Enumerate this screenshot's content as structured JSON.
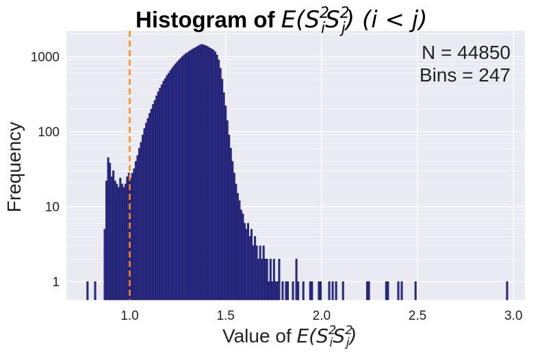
{
  "chart_data": {
    "type": "bar",
    "title": {
      "prefix": "Histogram of ",
      "E": "E",
      "open": "(",
      "S": "S",
      "two": "2",
      "i": "i",
      "j": "j",
      "close": ")",
      "cond": " (i < j)"
    },
    "xlabel": {
      "prefix": "Value of ",
      "E": "E",
      "open": "(",
      "S": "S",
      "two": "2",
      "i": "i",
      "j": "j",
      "close": ")"
    },
    "ylabel": "Frequency",
    "annotations": [
      "N = 44850",
      "Bins = 247"
    ],
    "xlim": [
      0.67,
      3.06
    ],
    "ylim": [
      0.57,
      2200
    ],
    "yscale": "log",
    "xticks": [
      {
        "value": 1.0,
        "label": "1.0"
      },
      {
        "value": 1.5,
        "label": "1.5"
      },
      {
        "value": 2.0,
        "label": "2.0"
      },
      {
        "value": 2.5,
        "label": "2.5"
      },
      {
        "value": 3.0,
        "label": "3.0"
      }
    ],
    "yticks": [
      {
        "value": 1,
        "label": "1"
      },
      {
        "value": 10,
        "label": "10"
      },
      {
        "value": 100,
        "label": "100"
      },
      {
        "value": 1000,
        "label": "1000"
      }
    ],
    "grid": true,
    "reference_line": {
      "x": 1.0,
      "style": "dashed",
      "color": "#ff8c1a"
    },
    "bar_color": "#2e2e8a",
    "bar_edge": "#11114d",
    "background": "#eaeaf2",
    "bin_width": 0.00897,
    "bins": [
      [
        0.78,
        1
      ],
      [
        0.82,
        1
      ],
      [
        0.87,
        5
      ],
      [
        0.879,
        22
      ],
      [
        0.888,
        45
      ],
      [
        0.897,
        38
      ],
      [
        0.906,
        25
      ],
      [
        0.915,
        30
      ],
      [
        0.924,
        22
      ],
      [
        0.933,
        20
      ],
      [
        0.942,
        18
      ],
      [
        0.951,
        24
      ],
      [
        0.96,
        20
      ],
      [
        0.969,
        18
      ],
      [
        0.978,
        20
      ],
      [
        0.987,
        25
      ],
      [
        0.996,
        28
      ],
      [
        1.005,
        24
      ],
      [
        1.014,
        28
      ],
      [
        1.023,
        32
      ],
      [
        1.032,
        40
      ],
      [
        1.041,
        48
      ],
      [
        1.05,
        60
      ],
      [
        1.059,
        72
      ],
      [
        1.068,
        90
      ],
      [
        1.077,
        110
      ],
      [
        1.086,
        130
      ],
      [
        1.095,
        150
      ],
      [
        1.104,
        175
      ],
      [
        1.113,
        200
      ],
      [
        1.122,
        230
      ],
      [
        1.131,
        260
      ],
      [
        1.14,
        300
      ],
      [
        1.149,
        340
      ],
      [
        1.158,
        380
      ],
      [
        1.167,
        420
      ],
      [
        1.176,
        470
      ],
      [
        1.185,
        510
      ],
      [
        1.194,
        560
      ],
      [
        1.203,
        600
      ],
      [
        1.212,
        650
      ],
      [
        1.221,
        700
      ],
      [
        1.23,
        750
      ],
      [
        1.239,
        800
      ],
      [
        1.248,
        850
      ],
      [
        1.257,
        900
      ],
      [
        1.266,
        950
      ],
      [
        1.275,
        1000
      ],
      [
        1.284,
        1050
      ],
      [
        1.293,
        1100
      ],
      [
        1.302,
        1130
      ],
      [
        1.311,
        1180
      ],
      [
        1.32,
        1220
      ],
      [
        1.329,
        1260
      ],
      [
        1.338,
        1300
      ],
      [
        1.347,
        1330
      ],
      [
        1.356,
        1380
      ],
      [
        1.365,
        1420
      ],
      [
        1.374,
        1450
      ],
      [
        1.383,
        1440
      ],
      [
        1.392,
        1410
      ],
      [
        1.401,
        1380
      ],
      [
        1.41,
        1340
      ],
      [
        1.419,
        1300
      ],
      [
        1.428,
        1260
      ],
      [
        1.437,
        1220
      ],
      [
        1.446,
        1150
      ],
      [
        1.455,
        1050
      ],
      [
        1.464,
        900
      ],
      [
        1.473,
        700
      ],
      [
        1.482,
        500
      ],
      [
        1.491,
        330
      ],
      [
        1.5,
        220
      ],
      [
        1.509,
        140
      ],
      [
        1.518,
        90
      ],
      [
        1.527,
        60
      ],
      [
        1.536,
        40
      ],
      [
        1.545,
        28
      ],
      [
        1.554,
        20
      ],
      [
        1.563,
        15
      ],
      [
        1.572,
        12
      ],
      [
        1.581,
        9
      ],
      [
        1.59,
        8
      ],
      [
        1.599,
        6
      ],
      [
        1.608,
        5
      ],
      [
        1.617,
        6
      ],
      [
        1.626,
        4
      ],
      [
        1.635,
        5
      ],
      [
        1.644,
        3
      ],
      [
        1.653,
        4
      ],
      [
        1.662,
        3
      ],
      [
        1.671,
        2
      ],
      [
        1.68,
        3
      ],
      [
        1.689,
        2
      ],
      [
        1.698,
        3
      ],
      [
        1.707,
        2
      ],
      [
        1.716,
        2
      ],
      [
        1.725,
        1
      ],
      [
        1.734,
        2
      ],
      [
        1.743,
        1
      ],
      [
        1.752,
        2
      ],
      [
        1.761,
        1
      ],
      [
        1.77,
        1
      ],
      [
        1.779,
        2
      ],
      [
        1.797,
        1
      ],
      [
        1.815,
        1
      ],
      [
        1.824,
        1
      ],
      [
        1.851,
        1
      ],
      [
        1.869,
        2
      ],
      [
        1.878,
        1
      ],
      [
        1.905,
        1
      ],
      [
        1.941,
        1
      ],
      [
        1.95,
        1
      ],
      [
        1.986,
        1
      ],
      [
        1.995,
        1
      ],
      [
        2.04,
        1
      ],
      [
        2.058,
        1
      ],
      [
        2.076,
        1
      ],
      [
        2.112,
        1
      ],
      [
        2.238,
        1
      ],
      [
        2.247,
        1
      ],
      [
        2.337,
        1
      ],
      [
        2.346,
        1
      ],
      [
        2.4,
        1
      ],
      [
        2.418,
        1
      ],
      [
        2.49,
        1
      ],
      [
        2.967,
        1
      ]
    ]
  }
}
